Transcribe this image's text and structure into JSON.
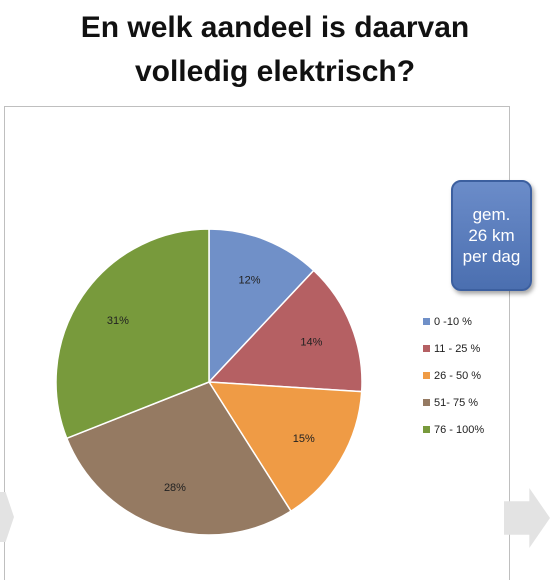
{
  "title": {
    "line1": "En welk aandeel is daarvan",
    "line2": "volledig elektrisch?"
  },
  "badge": {
    "line1": "gem.",
    "line2": "26 km",
    "line3": "per dag",
    "color": "#5a7bbd"
  },
  "chart_data": {
    "type": "pie",
    "categories": [
      "0 -10 %",
      "11 - 25 %",
      "26 - 50 %",
      "51- 75 %",
      "76 - 100%"
    ],
    "values": [
      12,
      14,
      15,
      28,
      31
    ],
    "labels": [
      "12%",
      "14%",
      "15%",
      "28%",
      "31%"
    ],
    "colors": [
      "#7090c8",
      "#b56063",
      "#ef9b45",
      "#957a62",
      "#789a3c"
    ],
    "start": "12 o'clock",
    "direction": "clockwise",
    "legend": "right"
  }
}
